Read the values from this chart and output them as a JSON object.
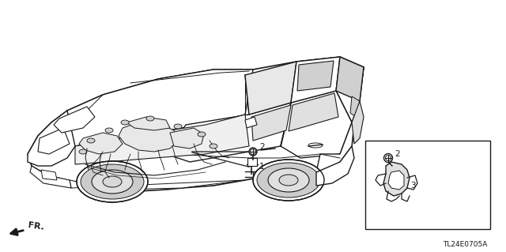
{
  "bg_color": "#ffffff",
  "line_color": "#1a1a1a",
  "fig_width": 6.4,
  "fig_height": 3.19,
  "dpi": 100,
  "callout_label_1": "1",
  "callout_label_2": "2",
  "callout_label_3": "3",
  "fr_label": "FR.",
  "part_code": "TL24E0705A"
}
